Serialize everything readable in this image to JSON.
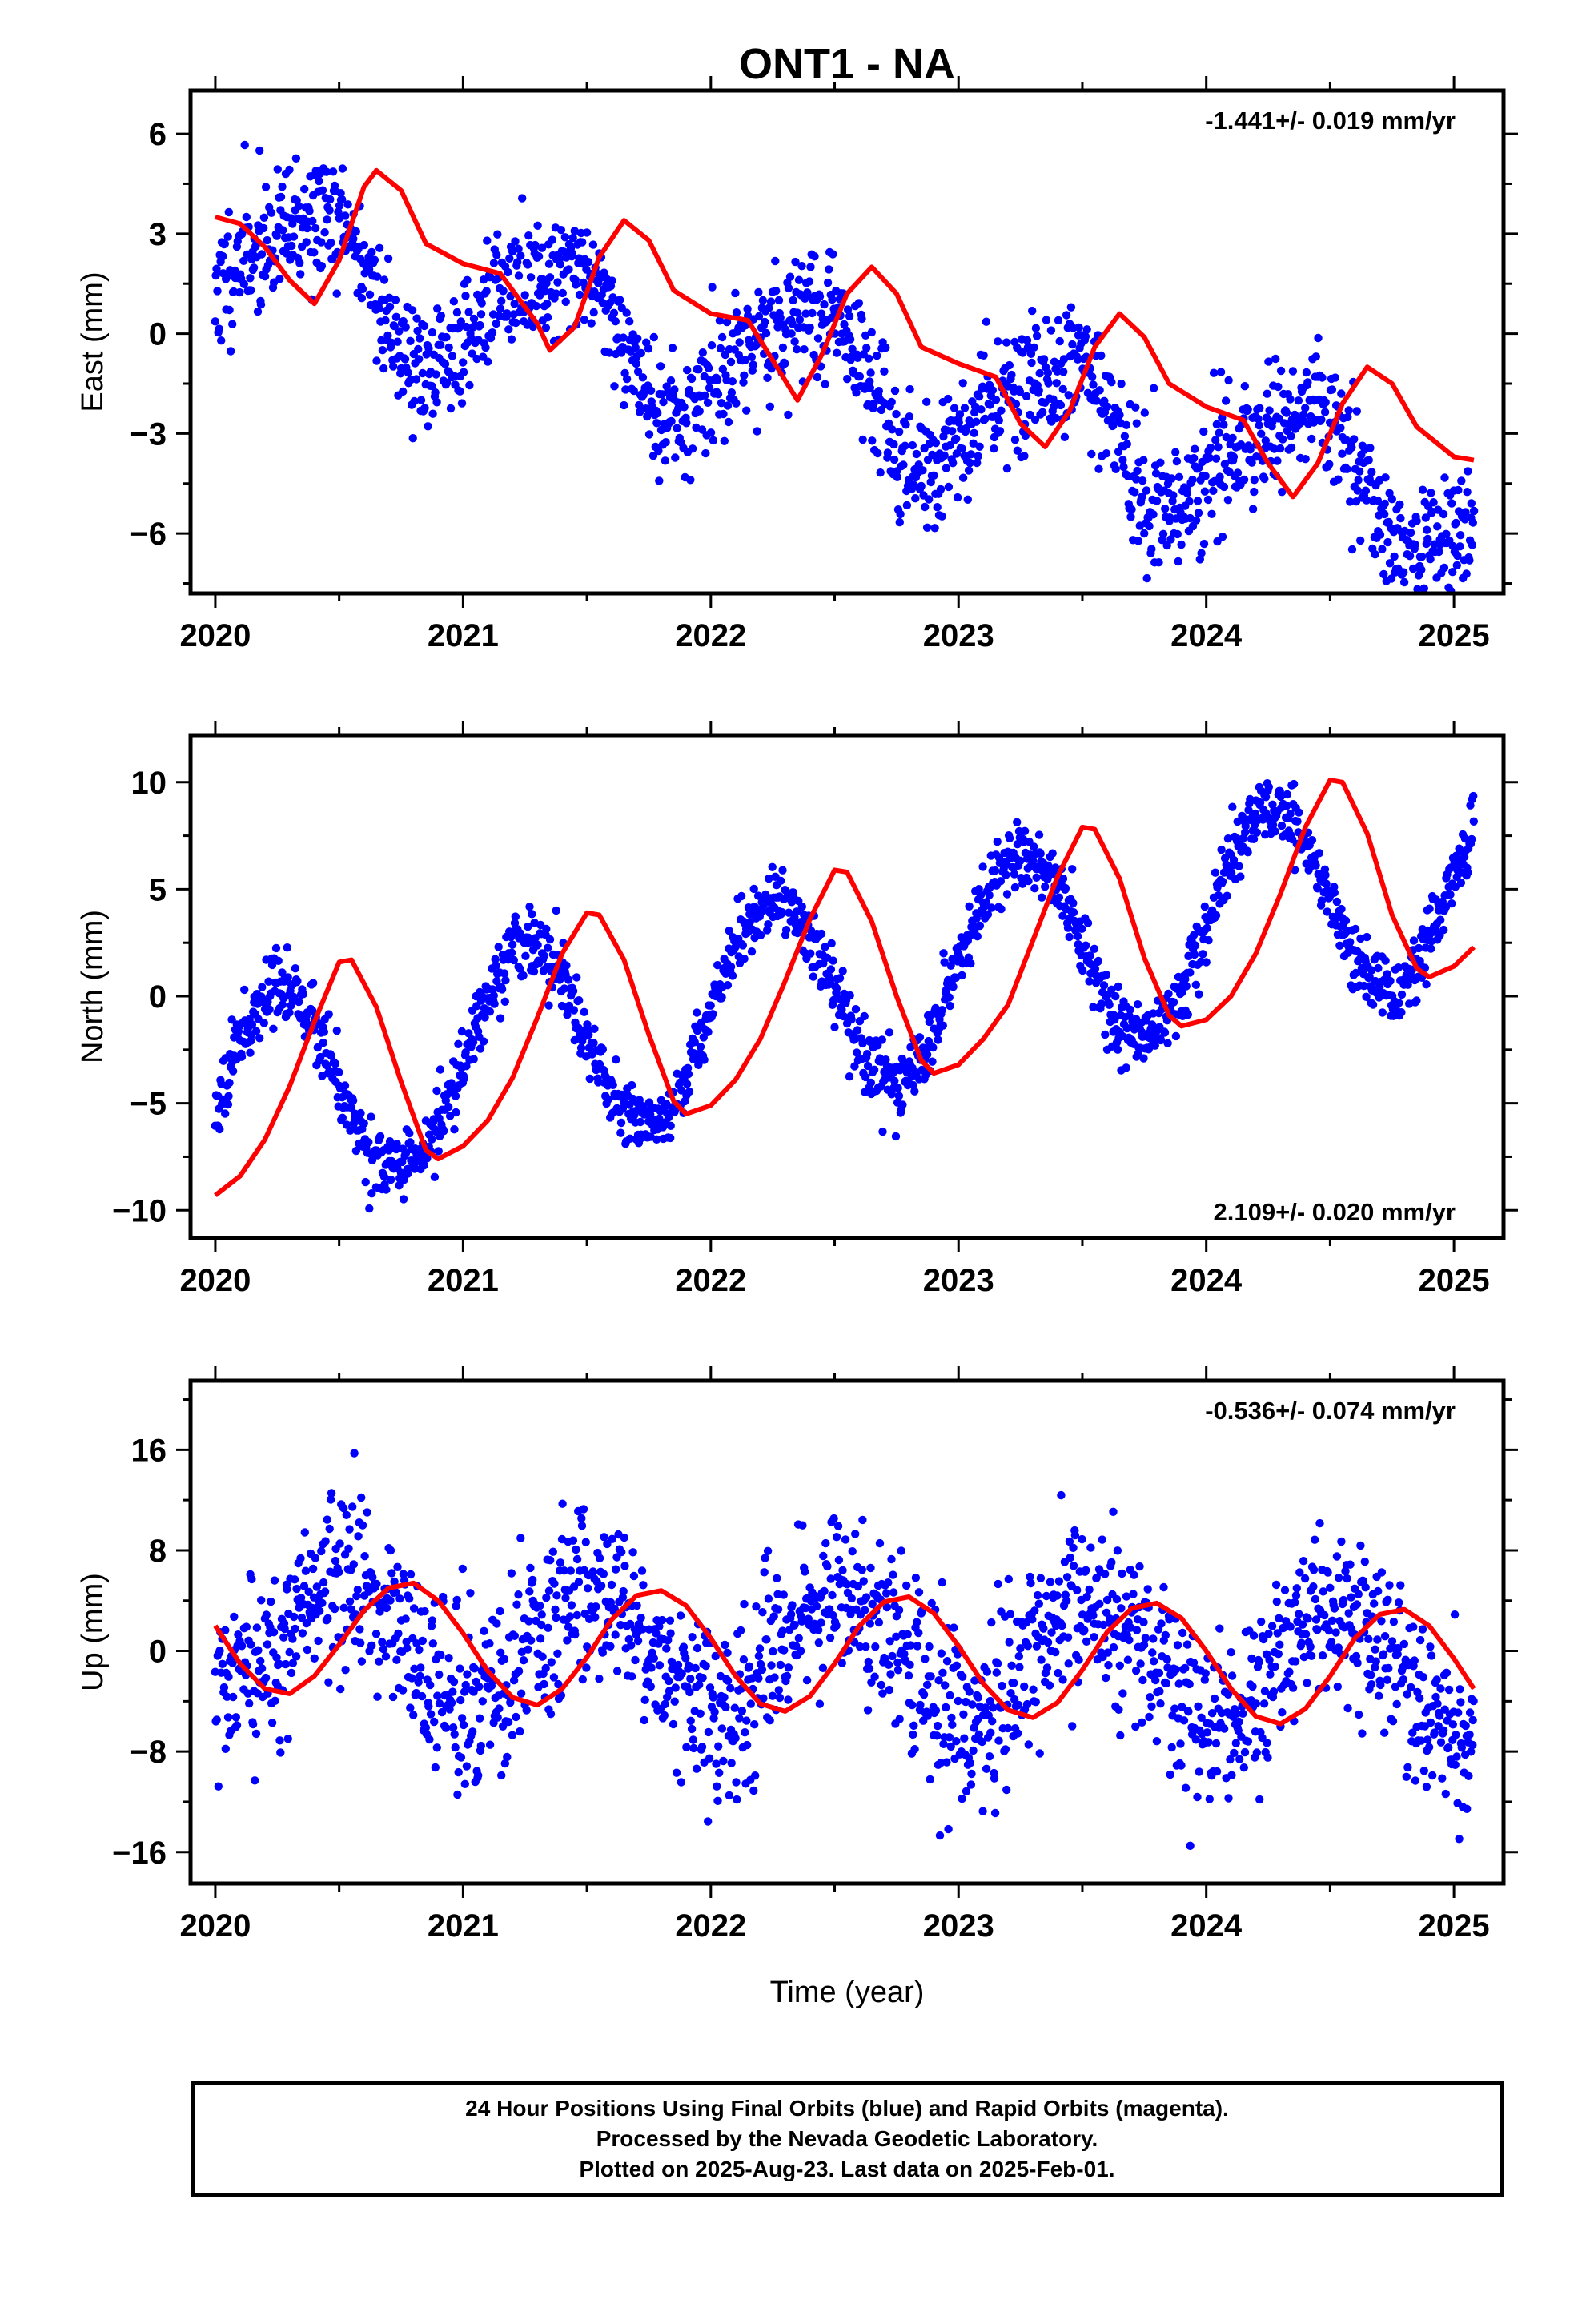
{
  "figure": {
    "title": "ONT1 - NA",
    "xlabel": "Time (year)"
  },
  "footer": {
    "line1": "24 Hour Positions Using Final Orbits (blue) and Rapid Orbits (magenta).",
    "line2": "Processed by the Nevada Geodetic Laboratory.",
    "line3": "Plotted on 2025-Aug-23. Last data on 2025-Feb-01."
  },
  "colors": {
    "points": "#0000ff",
    "fit": "#ff0000",
    "axes": "#000000"
  },
  "chart_data": [
    {
      "type": "scatter",
      "id": "east",
      "ylabel": "East (mm)",
      "rate_label": "-1.441+/- 0.019 mm/yr",
      "rate_position": "top-right",
      "xlim": [
        2019.9,
        2025.2
      ],
      "ylim": [
        -7.8,
        7.3
      ],
      "yticks": [
        -6,
        -3,
        0,
        3,
        6
      ],
      "xticks": [
        2020,
        2021,
        2022,
        2023,
        2024,
        2025
      ],
      "x_range": [
        2020.0,
        2025.08
      ],
      "model": {
        "offset": 2.3,
        "trend": -1.441,
        "amp1": 1.9,
        "phase1": 0.38,
        "amp2": 0.45,
        "phase2": 0.55,
        "noise": 0.95,
        "n": 1700,
        "seed": 11
      },
      "fit_curve": [
        [
          2020.0,
          3.5
        ],
        [
          2020.1,
          3.3
        ],
        [
          2020.2,
          2.6
        ],
        [
          2020.3,
          1.6
        ],
        [
          2020.4,
          0.9
        ],
        [
          2020.5,
          2.2
        ],
        [
          2020.6,
          4.4
        ],
        [
          2020.65,
          4.9
        ],
        [
          2020.75,
          4.3
        ],
        [
          2020.85,
          2.7
        ],
        [
          2021.0,
          2.1
        ],
        [
          2021.15,
          1.8
        ],
        [
          2021.3,
          0.3
        ],
        [
          2021.35,
          -0.5
        ],
        [
          2021.45,
          0.2
        ],
        [
          2021.55,
          2.3
        ],
        [
          2021.65,
          3.4
        ],
        [
          2021.75,
          2.8
        ],
        [
          2021.85,
          1.3
        ],
        [
          2022.0,
          0.6
        ],
        [
          2022.15,
          0.4
        ],
        [
          2022.25,
          -0.8
        ],
        [
          2022.35,
          -2.0
        ],
        [
          2022.45,
          -0.6
        ],
        [
          2022.55,
          1.2
        ],
        [
          2022.65,
          2.0
        ],
        [
          2022.75,
          1.2
        ],
        [
          2022.85,
          -0.4
        ],
        [
          2023.0,
          -0.9
        ],
        [
          2023.15,
          -1.3
        ],
        [
          2023.25,
          -2.7
        ],
        [
          2023.35,
          -3.4
        ],
        [
          2023.45,
          -2.3
        ],
        [
          2023.55,
          -0.4
        ],
        [
          2023.65,
          0.6
        ],
        [
          2023.75,
          -0.1
        ],
        [
          2023.85,
          -1.5
        ],
        [
          2024.0,
          -2.2
        ],
        [
          2024.15,
          -2.6
        ],
        [
          2024.25,
          -3.9
        ],
        [
          2024.35,
          -4.9
        ],
        [
          2024.45,
          -3.9
        ],
        [
          2024.55,
          -2.1
        ],
        [
          2024.65,
          -1.0
        ],
        [
          2024.75,
          -1.5
        ],
        [
          2024.85,
          -2.8
        ],
        [
          2025.0,
          -3.7
        ],
        [
          2025.08,
          -3.8
        ]
      ]
    },
    {
      "type": "scatter",
      "id": "north",
      "ylabel": "North (mm)",
      "rate_label": "2.109+/- 0.020 mm/yr",
      "rate_position": "bottom-right",
      "xlim": [
        2019.9,
        2025.2
      ],
      "ylim": [
        -11.3,
        12.2
      ],
      "yticks": [
        -10,
        -5,
        0,
        5,
        10
      ],
      "xticks": [
        2020,
        2021,
        2022,
        2023,
        2024,
        2025
      ],
      "x_range": [
        2020.0,
        2025.08
      ],
      "model": {
        "offset": -5.0,
        "trend": 2.109,
        "amp1": 4.8,
        "phase1": 0.25,
        "amp2": 0.0,
        "phase2": 0.0,
        "noise": 0.8,
        "n": 1700,
        "seed": 23
      },
      "fit_curve": [
        [
          2020.0,
          -9.3
        ],
        [
          2020.1,
          -8.4
        ],
        [
          2020.2,
          -6.7
        ],
        [
          2020.3,
          -4.2
        ],
        [
          2020.4,
          -1.2
        ],
        [
          2020.5,
          1.6
        ],
        [
          2020.55,
          1.7
        ],
        [
          2020.65,
          -0.5
        ],
        [
          2020.75,
          -4.0
        ],
        [
          2020.85,
          -7.2
        ],
        [
          2020.9,
          -7.6
        ],
        [
          2021.0,
          -7.0
        ],
        [
          2021.1,
          -5.8
        ],
        [
          2021.2,
          -3.8
        ],
        [
          2021.3,
          -1.0
        ],
        [
          2021.4,
          2.0
        ],
        [
          2021.5,
          3.9
        ],
        [
          2021.55,
          3.8
        ],
        [
          2021.65,
          1.7
        ],
        [
          2021.75,
          -1.8
        ],
        [
          2021.85,
          -4.9
        ],
        [
          2021.9,
          -5.5
        ],
        [
          2022.0,
          -5.1
        ],
        [
          2022.1,
          -3.9
        ],
        [
          2022.2,
          -2.0
        ],
        [
          2022.3,
          0.7
        ],
        [
          2022.4,
          3.6
        ],
        [
          2022.5,
          5.9
        ],
        [
          2022.55,
          5.8
        ],
        [
          2022.65,
          3.5
        ],
        [
          2022.75,
          0.0
        ],
        [
          2022.85,
          -3.0
        ],
        [
          2022.9,
          -3.6
        ],
        [
          2023.0,
          -3.2
        ],
        [
          2023.1,
          -2.0
        ],
        [
          2023.2,
          -0.4
        ],
        [
          2023.3,
          2.6
        ],
        [
          2023.4,
          5.6
        ],
        [
          2023.5,
          7.9
        ],
        [
          2023.55,
          7.8
        ],
        [
          2023.65,
          5.5
        ],
        [
          2023.75,
          1.8
        ],
        [
          2023.85,
          -0.9
        ],
        [
          2023.9,
          -1.4
        ],
        [
          2024.0,
          -1.1
        ],
        [
          2024.1,
          0.0
        ],
        [
          2024.2,
          2.0
        ],
        [
          2024.3,
          4.8
        ],
        [
          2024.4,
          7.9
        ],
        [
          2024.5,
          10.1
        ],
        [
          2024.55,
          10.0
        ],
        [
          2024.65,
          7.6
        ],
        [
          2024.75,
          3.8
        ],
        [
          2024.85,
          1.3
        ],
        [
          2024.9,
          0.9
        ],
        [
          2025.0,
          1.4
        ],
        [
          2025.08,
          2.3
        ]
      ]
    },
    {
      "type": "scatter",
      "id": "up",
      "ylabel": "Up (mm)",
      "rate_label": "-0.536+/- 0.074 mm/yr",
      "rate_position": "top-right",
      "xlim": [
        2019.9,
        2025.2
      ],
      "ylim": [
        -18.5,
        21.5
      ],
      "yticks": [
        -16,
        -8,
        0,
        8,
        16
      ],
      "xticks": [
        2020,
        2021,
        2022,
        2023,
        2024,
        2025
      ],
      "x_range": [
        2020.0,
        2025.08
      ],
      "model": {
        "offset": 1.0,
        "trend": -0.536,
        "amp1": 4.6,
        "phase1": 0.52,
        "amp2": 0.0,
        "phase2": 0.0,
        "noise": 3.5,
        "n": 1700,
        "seed": 37
      },
      "fit_curve": [
        [
          2020.0,
          2.0
        ],
        [
          2020.1,
          -1.0
        ],
        [
          2020.2,
          -3.0
        ],
        [
          2020.3,
          -3.4
        ],
        [
          2020.4,
          -2.0
        ],
        [
          2020.5,
          0.5
        ],
        [
          2020.6,
          3.2
        ],
        [
          2020.7,
          5.0
        ],
        [
          2020.8,
          5.4
        ],
        [
          2020.9,
          4.0
        ],
        [
          2021.0,
          1.4
        ],
        [
          2021.1,
          -1.6
        ],
        [
          2021.2,
          -3.7
        ],
        [
          2021.3,
          -4.3
        ],
        [
          2021.4,
          -3.0
        ],
        [
          2021.5,
          -0.5
        ],
        [
          2021.6,
          2.5
        ],
        [
          2021.7,
          4.4
        ],
        [
          2021.8,
          4.8
        ],
        [
          2021.9,
          3.6
        ],
        [
          2022.0,
          1.0
        ],
        [
          2022.1,
          -2.0
        ],
        [
          2022.2,
          -4.2
        ],
        [
          2022.3,
          -4.8
        ],
        [
          2022.4,
          -3.6
        ],
        [
          2022.5,
          -1.0
        ],
        [
          2022.6,
          2.0
        ],
        [
          2022.7,
          3.9
        ],
        [
          2022.8,
          4.3
        ],
        [
          2022.9,
          3.0
        ],
        [
          2023.0,
          0.4
        ],
        [
          2023.1,
          -2.6
        ],
        [
          2023.2,
          -4.7
        ],
        [
          2023.3,
          -5.3
        ],
        [
          2023.4,
          -4.1
        ],
        [
          2023.5,
          -1.5
        ],
        [
          2023.6,
          1.5
        ],
        [
          2023.7,
          3.4
        ],
        [
          2023.8,
          3.8
        ],
        [
          2023.9,
          2.6
        ],
        [
          2024.0,
          0.0
        ],
        [
          2024.1,
          -3.0
        ],
        [
          2024.2,
          -5.2
        ],
        [
          2024.3,
          -5.8
        ],
        [
          2024.4,
          -4.6
        ],
        [
          2024.5,
          -2.0
        ],
        [
          2024.6,
          1.0
        ],
        [
          2024.7,
          2.9
        ],
        [
          2024.8,
          3.3
        ],
        [
          2024.9,
          2.0
        ],
        [
          2025.0,
          -0.6
        ],
        [
          2025.08,
          -3.0
        ]
      ]
    }
  ]
}
